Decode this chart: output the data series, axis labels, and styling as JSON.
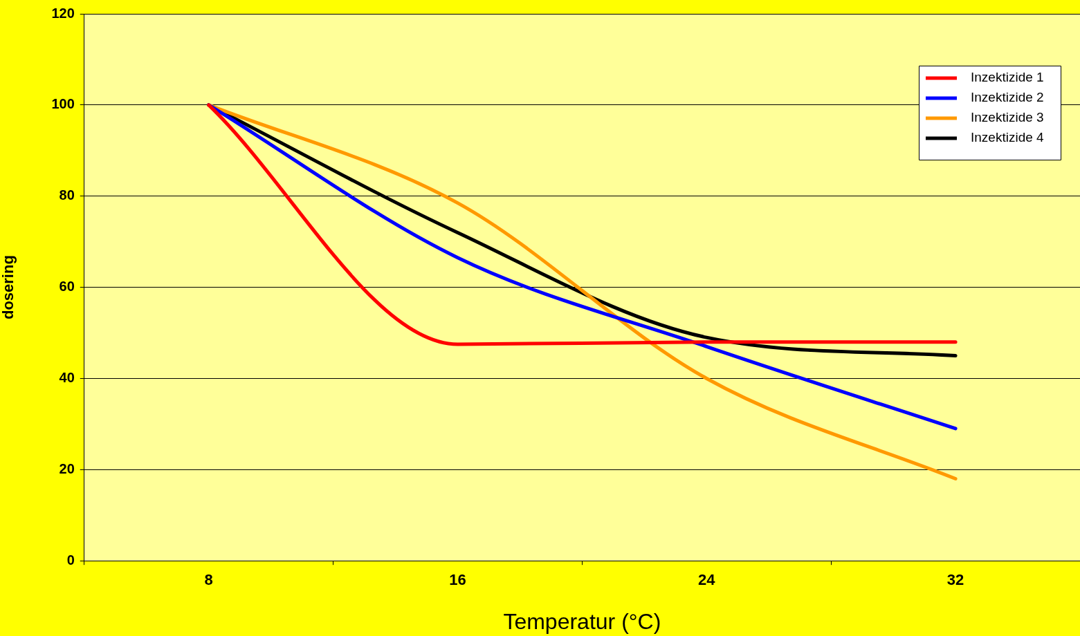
{
  "chart_data": {
    "type": "line",
    "xlabel": "Temperatur (°C)",
    "ylabel": "dosering",
    "categories": [
      "8",
      "16",
      "24",
      "32"
    ],
    "series": [
      {
        "name": "Inzektizide 1",
        "color": "#ff0000",
        "values": [
          100,
          47.5,
          48,
          48
        ]
      },
      {
        "name": "Inzektizide 2",
        "color": "#0000ff",
        "values": [
          100,
          66.5,
          47,
          29
        ]
      },
      {
        "name": "Inzektizide 3",
        "color": "#ff9900",
        "values": [
          100,
          78.5,
          40,
          18
        ]
      },
      {
        "name": "Inzektizide 4",
        "color": "#000000",
        "values": [
          100,
          72,
          49,
          45
        ]
      }
    ],
    "ylim": [
      0,
      120
    ],
    "yticks": [
      0,
      20,
      40,
      60,
      80,
      100,
      120
    ],
    "grid": "y",
    "legend": "top right",
    "marker": "none",
    "line_style": "solid"
  }
}
